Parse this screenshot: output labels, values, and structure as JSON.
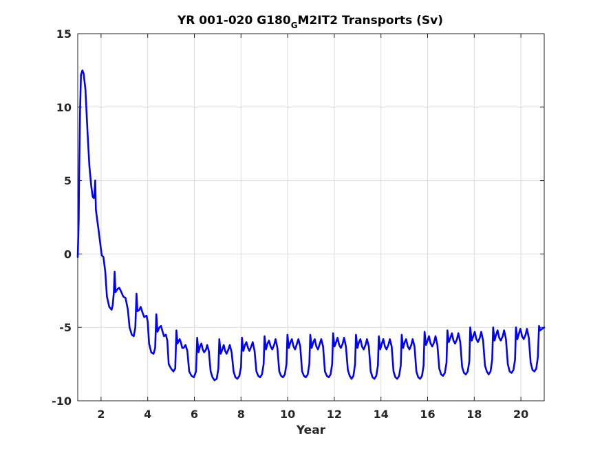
{
  "chart_data": {
    "type": "line",
    "title_main": "YR 001-020 G180",
    "title_sub": "G",
    "title_rest": "M2IT2 Transports (Sv)",
    "xlabel": "Year",
    "ylabel": "",
    "xlim": [
      1,
      21
    ],
    "ylim": [
      -10,
      15
    ],
    "xticks": [
      2,
      4,
      6,
      8,
      10,
      12,
      14,
      16,
      18,
      20
    ],
    "yticks": [
      -10,
      -5,
      0,
      5,
      10,
      15
    ],
    "grid": true,
    "series": [
      {
        "color": "#0000ff",
        "points": [
          [
            1.0,
            -0.2
          ],
          [
            1.04,
            2.3
          ],
          [
            1.06,
            5.3
          ],
          [
            1.1,
            9.8
          ],
          [
            1.14,
            12.2
          ],
          [
            1.2,
            12.5
          ],
          [
            1.25,
            12.3
          ],
          [
            1.33,
            11.2
          ],
          [
            1.42,
            8.3
          ],
          [
            1.5,
            6.0
          ],
          [
            1.58,
            4.6
          ],
          [
            1.64,
            3.9
          ],
          [
            1.69,
            3.8
          ],
          [
            1.72,
            4.1
          ],
          [
            1.75,
            5.0
          ],
          [
            1.78,
            3.0
          ],
          [
            1.88,
            1.8
          ],
          [
            1.96,
            0.8
          ],
          [
            2.03,
            -0.1
          ],
          [
            2.1,
            -0.2
          ],
          [
            2.18,
            -1.2
          ],
          [
            2.25,
            -2.9
          ],
          [
            2.35,
            -3.6
          ],
          [
            2.45,
            -3.8
          ],
          [
            2.5,
            -3.5
          ],
          [
            2.55,
            -2.6
          ],
          [
            2.58,
            -1.2
          ],
          [
            2.62,
            -2.6
          ],
          [
            2.7,
            -2.4
          ],
          [
            2.78,
            -2.3
          ],
          [
            2.87,
            -2.6
          ],
          [
            2.95,
            -2.9
          ],
          [
            3.05,
            -3.0
          ],
          [
            3.15,
            -3.8
          ],
          [
            3.22,
            -5.0
          ],
          [
            3.32,
            -5.5
          ],
          [
            3.4,
            -5.6
          ],
          [
            3.47,
            -5.0
          ],
          [
            3.52,
            -2.7
          ],
          [
            3.56,
            -3.9
          ],
          [
            3.64,
            -3.8
          ],
          [
            3.7,
            -3.6
          ],
          [
            3.78,
            -4.0
          ],
          [
            3.85,
            -4.3
          ],
          [
            3.95,
            -4.2
          ],
          [
            4.0,
            -4.6
          ],
          [
            4.06,
            -6.1
          ],
          [
            4.15,
            -6.7
          ],
          [
            4.25,
            -6.8
          ],
          [
            4.32,
            -6.4
          ],
          [
            4.37,
            -4.1
          ],
          [
            4.42,
            -5.3
          ],
          [
            4.5,
            -5.0
          ],
          [
            4.57,
            -4.9
          ],
          [
            4.64,
            -5.3
          ],
          [
            4.7,
            -5.6
          ],
          [
            4.78,
            -5.5
          ],
          [
            4.84,
            -5.9
          ],
          [
            4.9,
            -7.5
          ],
          [
            5.0,
            -7.8
          ],
          [
            5.1,
            -8.0
          ],
          [
            5.18,
            -7.8
          ],
          [
            5.23,
            -5.2
          ],
          [
            5.28,
            -6.1
          ],
          [
            5.37,
            -5.8
          ],
          [
            5.42,
            -6.0
          ],
          [
            5.48,
            -6.4
          ],
          [
            5.54,
            -6.4
          ],
          [
            5.62,
            -6.2
          ],
          [
            5.7,
            -6.6
          ],
          [
            5.78,
            -8.0
          ],
          [
            5.88,
            -8.3
          ],
          [
            5.98,
            -8.4
          ],
          [
            6.07,
            -8.0
          ],
          [
            6.12,
            -5.7
          ],
          [
            6.18,
            -6.7
          ],
          [
            6.24,
            -6.3
          ],
          [
            6.3,
            -6.1
          ],
          [
            6.36,
            -6.5
          ],
          [
            6.42,
            -6.7
          ],
          [
            6.5,
            -6.5
          ],
          [
            6.55,
            -6.2
          ],
          [
            6.62,
            -6.6
          ],
          [
            6.7,
            -8.0
          ],
          [
            6.78,
            -8.4
          ],
          [
            6.86,
            -8.6
          ],
          [
            6.96,
            -8.5
          ],
          [
            7.03,
            -7.8
          ],
          [
            7.07,
            -5.8
          ],
          [
            7.13,
            -6.8
          ],
          [
            7.2,
            -6.5
          ],
          [
            7.26,
            -6.2
          ],
          [
            7.32,
            -6.6
          ],
          [
            7.38,
            -6.8
          ],
          [
            7.46,
            -6.5
          ],
          [
            7.52,
            -6.2
          ],
          [
            7.6,
            -6.7
          ],
          [
            7.68,
            -8.0
          ],
          [
            7.76,
            -8.4
          ],
          [
            7.84,
            -8.5
          ],
          [
            7.93,
            -8.3
          ],
          [
            8.0,
            -7.7
          ],
          [
            8.04,
            -5.7
          ],
          [
            8.1,
            -6.6
          ],
          [
            8.17,
            -6.2
          ],
          [
            8.23,
            -6.0
          ],
          [
            8.3,
            -6.4
          ],
          [
            8.36,
            -6.6
          ],
          [
            8.44,
            -6.3
          ],
          [
            8.5,
            -6.0
          ],
          [
            8.58,
            -6.6
          ],
          [
            8.66,
            -8.0
          ],
          [
            8.74,
            -8.3
          ],
          [
            8.82,
            -8.4
          ],
          [
            8.9,
            -8.2
          ],
          [
            8.97,
            -7.5
          ],
          [
            9.01,
            -5.6
          ],
          [
            9.07,
            -6.5
          ],
          [
            9.14,
            -6.1
          ],
          [
            9.2,
            -5.9
          ],
          [
            9.27,
            -6.3
          ],
          [
            9.34,
            -6.5
          ],
          [
            9.42,
            -6.2
          ],
          [
            9.48,
            -5.8
          ],
          [
            9.56,
            -6.4
          ],
          [
            9.64,
            -8.0
          ],
          [
            9.72,
            -8.3
          ],
          [
            9.8,
            -8.4
          ],
          [
            9.88,
            -8.2
          ],
          [
            9.95,
            -7.5
          ],
          [
            9.99,
            -5.5
          ],
          [
            10.05,
            -6.4
          ],
          [
            10.12,
            -6.0
          ],
          [
            10.18,
            -5.8
          ],
          [
            10.25,
            -6.3
          ],
          [
            10.32,
            -6.5
          ],
          [
            10.4,
            -6.1
          ],
          [
            10.46,
            -5.8
          ],
          [
            10.54,
            -6.3
          ],
          [
            10.62,
            -8.0
          ],
          [
            10.7,
            -8.3
          ],
          [
            10.78,
            -8.4
          ],
          [
            10.86,
            -8.2
          ],
          [
            10.93,
            -7.5
          ],
          [
            10.97,
            -5.5
          ],
          [
            11.03,
            -6.4
          ],
          [
            11.1,
            -6.0
          ],
          [
            11.16,
            -5.8
          ],
          [
            11.23,
            -6.3
          ],
          [
            11.3,
            -6.5
          ],
          [
            11.38,
            -6.1
          ],
          [
            11.44,
            -5.8
          ],
          [
            11.52,
            -6.3
          ],
          [
            11.6,
            -8.0
          ],
          [
            11.68,
            -8.3
          ],
          [
            11.76,
            -8.4
          ],
          [
            11.84,
            -8.2
          ],
          [
            11.91,
            -7.5
          ],
          [
            11.95,
            -5.4
          ],
          [
            12.01,
            -6.3
          ],
          [
            12.08,
            -6.0
          ],
          [
            12.14,
            -5.7
          ],
          [
            12.21,
            -6.2
          ],
          [
            12.28,
            -6.4
          ],
          [
            12.36,
            -6.1
          ],
          [
            12.42,
            -5.7
          ],
          [
            12.5,
            -6.3
          ],
          [
            12.58,
            -7.9
          ],
          [
            12.66,
            -8.3
          ],
          [
            12.74,
            -8.5
          ],
          [
            12.82,
            -8.3
          ],
          [
            12.89,
            -7.5
          ],
          [
            12.93,
            -5.5
          ],
          [
            12.99,
            -6.4
          ],
          [
            13.06,
            -6.0
          ],
          [
            13.12,
            -5.8
          ],
          [
            13.19,
            -6.3
          ],
          [
            13.26,
            -6.5
          ],
          [
            13.34,
            -6.2
          ],
          [
            13.4,
            -5.8
          ],
          [
            13.48,
            -6.3
          ],
          [
            13.56,
            -8.0
          ],
          [
            13.64,
            -8.4
          ],
          [
            13.72,
            -8.5
          ],
          [
            13.8,
            -8.3
          ],
          [
            13.87,
            -7.6
          ],
          [
            13.91,
            -5.6
          ],
          [
            13.97,
            -6.5
          ],
          [
            14.04,
            -6.1
          ],
          [
            14.1,
            -5.8
          ],
          [
            14.17,
            -6.3
          ],
          [
            14.24,
            -6.5
          ],
          [
            14.32,
            -6.2
          ],
          [
            14.38,
            -5.8
          ],
          [
            14.46,
            -6.3
          ],
          [
            14.54,
            -8.0
          ],
          [
            14.62,
            -8.4
          ],
          [
            14.7,
            -8.5
          ],
          [
            14.78,
            -8.3
          ],
          [
            14.85,
            -7.6
          ],
          [
            14.89,
            -5.5
          ],
          [
            14.95,
            -6.4
          ],
          [
            15.02,
            -6.0
          ],
          [
            15.08,
            -5.8
          ],
          [
            15.15,
            -6.3
          ],
          [
            15.22,
            -6.5
          ],
          [
            15.3,
            -6.2
          ],
          [
            15.36,
            -5.8
          ],
          [
            15.44,
            -6.3
          ],
          [
            15.52,
            -8.0
          ],
          [
            15.6,
            -8.4
          ],
          [
            15.68,
            -8.5
          ],
          [
            15.76,
            -8.3
          ],
          [
            15.83,
            -7.6
          ],
          [
            15.87,
            -5.3
          ],
          [
            15.93,
            -6.2
          ],
          [
            16.0,
            -5.9
          ],
          [
            16.06,
            -5.6
          ],
          [
            16.13,
            -6.1
          ],
          [
            16.2,
            -6.3
          ],
          [
            16.28,
            -6.0
          ],
          [
            16.34,
            -5.6
          ],
          [
            16.42,
            -6.2
          ],
          [
            16.5,
            -7.8
          ],
          [
            16.58,
            -8.2
          ],
          [
            16.66,
            -8.3
          ],
          [
            16.74,
            -8.1
          ],
          [
            16.81,
            -7.4
          ],
          [
            16.85,
            -5.2
          ],
          [
            16.91,
            -6.0
          ],
          [
            16.98,
            -5.7
          ],
          [
            17.04,
            -5.4
          ],
          [
            17.11,
            -5.9
          ],
          [
            17.18,
            -6.1
          ],
          [
            17.26,
            -5.8
          ],
          [
            17.32,
            -5.4
          ],
          [
            17.4,
            -6.0
          ],
          [
            17.48,
            -7.7
          ],
          [
            17.56,
            -8.1
          ],
          [
            17.64,
            -8.2
          ],
          [
            17.72,
            -8.0
          ],
          [
            17.79,
            -7.3
          ],
          [
            17.83,
            -5.0
          ],
          [
            17.89,
            -5.9
          ],
          [
            17.96,
            -5.6
          ],
          [
            18.02,
            -5.3
          ],
          [
            18.09,
            -5.8
          ],
          [
            18.16,
            -6.0
          ],
          [
            18.24,
            -5.7
          ],
          [
            18.3,
            -5.3
          ],
          [
            18.38,
            -5.9
          ],
          [
            18.46,
            -7.6
          ],
          [
            18.54,
            -8.0
          ],
          [
            18.62,
            -8.2
          ],
          [
            18.7,
            -8.0
          ],
          [
            18.77,
            -7.2
          ],
          [
            18.81,
            -5.0
          ],
          [
            18.87,
            -5.9
          ],
          [
            18.94,
            -5.5
          ],
          [
            19.0,
            -5.2
          ],
          [
            19.07,
            -5.7
          ],
          [
            19.14,
            -5.9
          ],
          [
            19.22,
            -5.6
          ],
          [
            19.28,
            -5.2
          ],
          [
            19.36,
            -5.8
          ],
          [
            19.44,
            -7.5
          ],
          [
            19.52,
            -8.0
          ],
          [
            19.6,
            -8.1
          ],
          [
            19.68,
            -7.9
          ],
          [
            19.75,
            -7.2
          ],
          [
            19.79,
            -5.0
          ],
          [
            19.85,
            -5.8
          ],
          [
            19.92,
            -5.4
          ],
          [
            19.98,
            -5.1
          ],
          [
            20.05,
            -5.6
          ],
          [
            20.12,
            -5.8
          ],
          [
            20.2,
            -5.5
          ],
          [
            20.26,
            -5.1
          ],
          [
            20.34,
            -5.7
          ],
          [
            20.42,
            -7.4
          ],
          [
            20.5,
            -7.9
          ],
          [
            20.58,
            -8.0
          ],
          [
            20.66,
            -7.8
          ],
          [
            20.73,
            -7.0
          ],
          [
            20.78,
            -4.9
          ],
          [
            20.82,
            -5.2
          ],
          [
            21.0,
            -5.0
          ]
        ]
      }
    ]
  },
  "colors": {
    "line": "#0000ff",
    "axis": "#262626",
    "grid": "#dcdcdc",
    "background": "#ffffff"
  }
}
